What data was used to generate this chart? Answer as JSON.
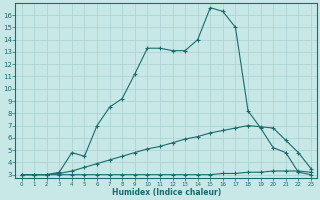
{
  "xlabel": "Humidex (Indice chaleur)",
  "bg_color": "#c8e8e8",
  "line_color": "#1a6b6b",
  "grid_color": "#a8d0d0",
  "xlim": [
    -0.5,
    23.5
  ],
  "ylim": [
    2.7,
    17.0
  ],
  "yticks": [
    3,
    4,
    5,
    6,
    7,
    8,
    9,
    10,
    11,
    12,
    13,
    14,
    15,
    16
  ],
  "xticks": [
    0,
    1,
    2,
    3,
    4,
    5,
    6,
    7,
    8,
    9,
    10,
    11,
    12,
    13,
    14,
    15,
    16,
    17,
    18,
    19,
    20,
    21,
    22,
    23
  ],
  "line1_x": [
    0,
    1,
    2,
    3,
    4,
    5,
    6,
    7,
    8,
    9,
    10,
    11,
    12,
    13,
    14,
    15,
    16,
    17,
    18,
    19,
    20,
    21,
    22,
    23
  ],
  "line1_y": [
    3.0,
    3.0,
    3.0,
    3.2,
    4.8,
    4.5,
    7.0,
    8.5,
    9.2,
    11.2,
    13.3,
    13.3,
    13.1,
    13.1,
    14.0,
    16.6,
    16.3,
    15.0,
    8.2,
    6.8,
    5.2,
    4.8,
    3.2,
    3.0
  ],
  "line2_x": [
    0,
    1,
    2,
    3,
    4,
    5,
    6,
    7,
    8,
    9,
    10,
    11,
    12,
    13,
    14,
    15,
    16,
    17,
    18,
    19,
    20,
    21,
    22,
    23
  ],
  "line2_y": [
    3.0,
    3.0,
    3.0,
    3.1,
    3.3,
    3.6,
    3.9,
    4.2,
    4.5,
    4.8,
    5.1,
    5.3,
    5.6,
    5.9,
    6.1,
    6.4,
    6.6,
    6.8,
    7.0,
    6.9,
    6.8,
    5.8,
    4.8,
    3.5
  ],
  "line3_x": [
    0,
    1,
    2,
    3,
    4,
    5,
    6,
    7,
    8,
    9,
    10,
    11,
    12,
    13,
    14,
    15,
    16,
    17,
    18,
    19,
    20,
    21,
    22,
    23
  ],
  "line3_y": [
    3.0,
    3.0,
    3.0,
    3.0,
    3.0,
    3.0,
    3.0,
    3.0,
    3.0,
    3.0,
    3.0,
    3.0,
    3.0,
    3.0,
    3.0,
    3.0,
    3.1,
    3.1,
    3.2,
    3.2,
    3.3,
    3.3,
    3.3,
    3.2
  ]
}
